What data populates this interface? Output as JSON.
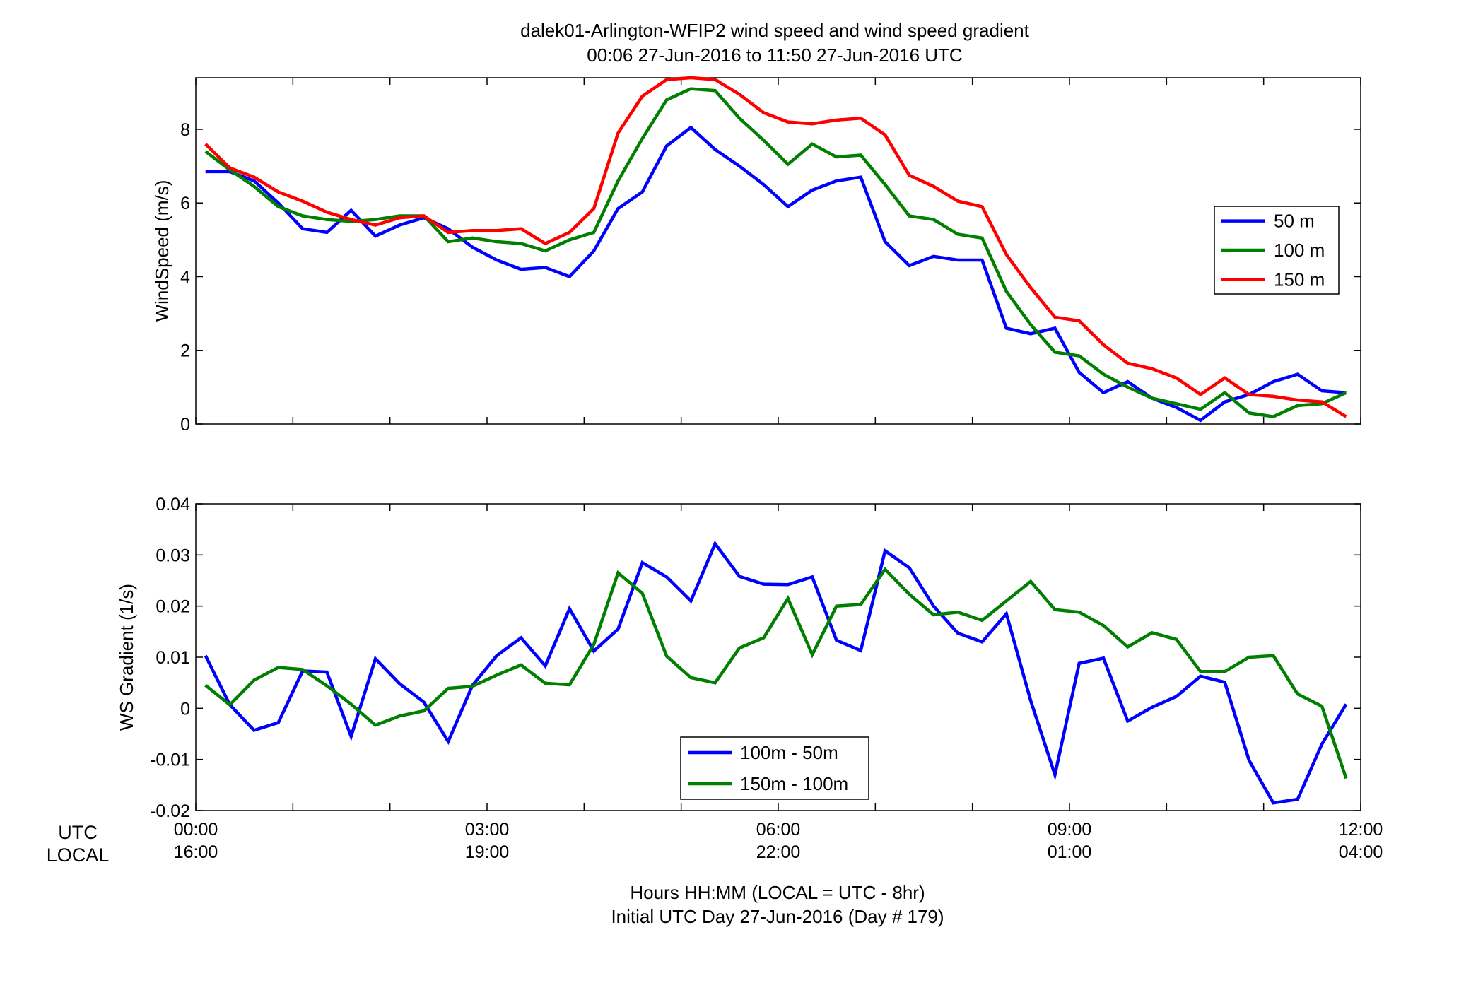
{
  "title": {
    "line1": "dalek01-Arlington-WFIP2  wind speed and wind speed gradient",
    "line2": "00:06 27-Jun-2016 to 11:50 27-Jun-2016  UTC"
  },
  "bottom_axis": {
    "row_labels": [
      "UTC",
      "LOCAL"
    ],
    "utc_ticks": [
      "00:00",
      "03:00",
      "06:00",
      "09:00",
      "12:00"
    ],
    "local_ticks": [
      "16:00",
      "19:00",
      "22:00",
      "01:00",
      "04:00"
    ],
    "xlabel_line1": "Hours HH:MM  (LOCAL = UTC - 8hr)",
    "xlabel_line2": "Initial UTC Day 27-Jun-2016 (Day # 179)"
  },
  "colors": {
    "blue": "#0000ff",
    "green": "#007f00",
    "red": "#ff0000"
  },
  "chart_data": [
    {
      "type": "line",
      "ylabel": "WindSpeed (m/s)",
      "xlim": [
        0,
        12
      ],
      "ylim": [
        0,
        9.4
      ],
      "yticks": [
        0,
        2,
        4,
        6,
        8
      ],
      "ytick_labels": [
        "0",
        "2",
        "4",
        "6",
        "8"
      ],
      "x_unit": "hours UTC",
      "x": [
        0.1,
        0.35,
        0.6,
        0.85,
        1.1,
        1.35,
        1.6,
        1.85,
        2.1,
        2.35,
        2.6,
        2.85,
        3.1,
        3.35,
        3.6,
        3.85,
        4.1,
        4.35,
        4.6,
        4.85,
        5.1,
        5.35,
        5.6,
        5.85,
        6.1,
        6.35,
        6.6,
        6.85,
        7.1,
        7.35,
        7.6,
        7.85,
        8.1,
        8.35,
        8.6,
        8.85,
        9.1,
        9.35,
        9.6,
        9.85,
        10.1,
        10.35,
        10.6,
        10.85,
        11.1,
        11.35,
        11.6,
        11.85
      ],
      "legend_position": "right",
      "series": [
        {
          "name": "50 m",
          "color": "#0000ff",
          "values": [
            6.85,
            6.85,
            6.6,
            6.0,
            5.3,
            5.2,
            5.8,
            5.1,
            5.4,
            5.6,
            5.3,
            4.8,
            4.45,
            4.2,
            4.25,
            4.0,
            4.7,
            5.85,
            6.3,
            7.55,
            8.05,
            7.45,
            7.0,
            6.5,
            5.9,
            6.35,
            6.6,
            6.7,
            4.95,
            4.3,
            4.55,
            4.45,
            4.45,
            2.6,
            2.45,
            2.6,
            1.4,
            0.85,
            1.15,
            0.7,
            0.45,
            0.1,
            0.6,
            0.8,
            1.15,
            1.35,
            0.9,
            0.85
          ]
        },
        {
          "name": "100 m",
          "color": "#007f00",
          "values": [
            7.4,
            6.9,
            6.45,
            5.9,
            5.65,
            5.55,
            5.5,
            5.55,
            5.65,
            5.65,
            4.95,
            5.05,
            4.95,
            4.9,
            4.7,
            5.0,
            5.2,
            6.6,
            7.75,
            8.8,
            9.1,
            9.05,
            8.3,
            7.7,
            7.05,
            7.6,
            7.25,
            7.3,
            6.5,
            5.65,
            5.55,
            5.15,
            5.05,
            3.6,
            2.7,
            1.95,
            1.85,
            1.35,
            1.0,
            0.7,
            0.55,
            0.4,
            0.85,
            0.3,
            0.2,
            0.5,
            0.55,
            0.85
          ]
        },
        {
          "name": "150 m",
          "color": "#ff0000",
          "values": [
            7.6,
            6.95,
            6.7,
            6.3,
            6.05,
            5.75,
            5.55,
            5.4,
            5.6,
            5.65,
            5.2,
            5.25,
            5.25,
            5.3,
            4.9,
            5.2,
            5.85,
            7.9,
            8.9,
            9.35,
            9.4,
            9.35,
            8.95,
            8.45,
            8.2,
            8.15,
            8.25,
            8.3,
            7.85,
            6.75,
            6.45,
            6.05,
            5.9,
            4.6,
            3.7,
            2.9,
            2.8,
            2.15,
            1.65,
            1.5,
            1.25,
            0.8,
            1.25,
            0.8,
            0.75,
            0.65,
            0.6,
            0.2
          ]
        }
      ]
    },
    {
      "type": "line",
      "ylabel": "WS Gradient (1/s)",
      "xlim": [
        0,
        12
      ],
      "ylim": [
        -0.02,
        0.04
      ],
      "yticks": [
        -0.02,
        -0.01,
        0,
        0.01,
        0.02,
        0.03,
        0.04
      ],
      "ytick_labels": [
        "-0.02",
        "-0.01",
        "0",
        "0.01",
        "0.02",
        "0.03",
        "0.04"
      ],
      "x_unit": "hours UTC",
      "x": [
        0.1,
        0.35,
        0.6,
        0.85,
        1.1,
        1.35,
        1.6,
        1.85,
        2.1,
        2.35,
        2.6,
        2.85,
        3.1,
        3.35,
        3.6,
        3.85,
        4.1,
        4.35,
        4.6,
        4.85,
        5.1,
        5.35,
        5.6,
        5.85,
        6.1,
        6.35,
        6.6,
        6.85,
        7.1,
        7.35,
        7.6,
        7.85,
        8.1,
        8.35,
        8.6,
        8.85,
        9.1,
        9.35,
        9.6,
        9.85,
        10.1,
        10.35,
        10.6,
        10.85,
        11.1,
        11.35,
        11.6,
        11.85
      ],
      "legend_position": "bottom-center",
      "series": [
        {
          "name": "100m - 50m",
          "color": "#0000ff",
          "values": [
            0.0103,
            0.0007,
            -0.0043,
            -0.0028,
            0.0073,
            0.0071,
            -0.0055,
            0.0097,
            0.0048,
            0.0012,
            -0.0065,
            0.0045,
            0.0103,
            0.0138,
            0.0083,
            0.0195,
            0.0112,
            0.0155,
            0.0285,
            0.0257,
            0.021,
            0.0322,
            0.0258,
            0.0243,
            0.0242,
            0.0257,
            0.0133,
            0.0113,
            0.0308,
            0.0275,
            0.02,
            0.0147,
            0.013,
            0.0185,
            0.0015,
            -0.013,
            0.0088,
            0.0098,
            -0.0025,
            0.0002,
            0.0023,
            0.0063,
            0.0051,
            -0.0102,
            -0.0185,
            -0.0178,
            -0.007,
            0.0008
          ]
        },
        {
          "name": "150m - 100m",
          "color": "#007f00",
          "values": [
            0.0045,
            0.0007,
            0.0055,
            0.008,
            0.0076,
            0.0044,
            0.0008,
            -0.0033,
            -0.0015,
            -0.0005,
            0.0039,
            0.0043,
            0.0065,
            0.0085,
            0.0049,
            0.0046,
            0.0125,
            0.0265,
            0.0225,
            0.0102,
            0.006,
            0.005,
            0.0118,
            0.0138,
            0.0215,
            0.0105,
            0.02,
            0.0203,
            0.0272,
            0.0223,
            0.0183,
            0.0188,
            0.0172,
            0.021,
            0.0248,
            0.0193,
            0.0188,
            0.0162,
            0.012,
            0.0148,
            0.0135,
            0.0072,
            0.0072,
            0.01,
            0.0103,
            0.0028,
            0.0004,
            -0.0137
          ]
        }
      ]
    }
  ]
}
